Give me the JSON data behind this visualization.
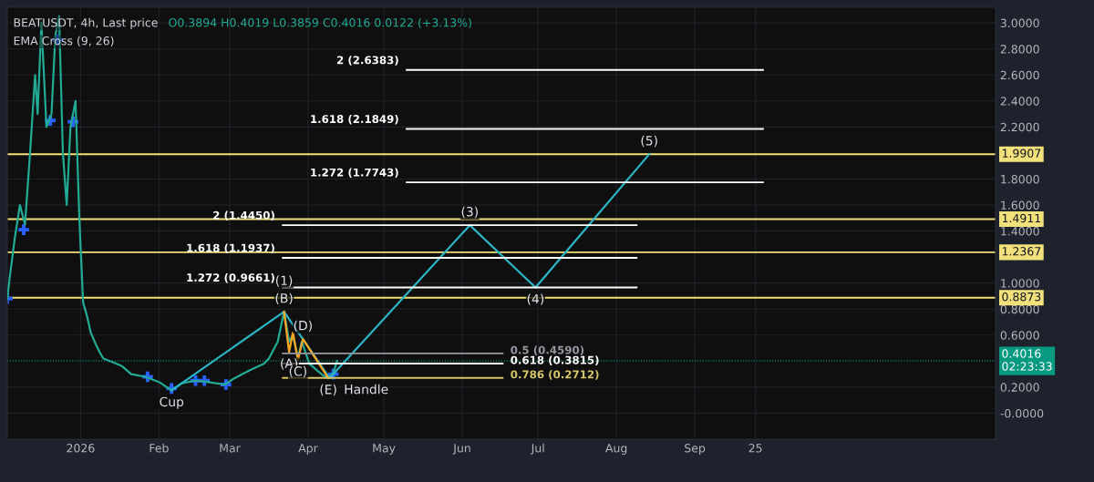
{
  "chart_data": {
    "type": "line",
    "title": "BEATUSDT, 4h, Last price",
    "subtitle": "O0.3894 H0.4019 L0.3859 C0.4016 0.0122 (+3.13%)",
    "xlim": [
      "2025-12-03",
      "2026-12-29"
    ],
    "ylim": [
      -0.2,
      3.12
    ],
    "xticks": [
      {
        "value": "2026-01-01",
        "label": "2026"
      },
      {
        "value": "2026-02-01",
        "label": "Feb"
      },
      {
        "value": "2026-03-01",
        "label": "Mar"
      },
      {
        "value": "2026-04-01",
        "label": "Apr"
      },
      {
        "value": "2026-05-01",
        "label": "May"
      },
      {
        "value": "2026-06-01",
        "label": "Jun"
      },
      {
        "value": "2026-07-01",
        "label": "Jul"
      },
      {
        "value": "2026-08-01",
        "label": "Aug"
      },
      {
        "value": "2026-09-01",
        "label": "Sep"
      },
      {
        "value": "2026-09-25",
        "label": "25"
      }
    ],
    "yticks": [
      {
        "value": 0,
        "label": "-0.0000"
      },
      {
        "value": 0.2,
        "label": "0.2000"
      },
      {
        "value": 0.6,
        "label": "0.6000"
      },
      {
        "value": 0.8,
        "label": "0.8000"
      },
      {
        "value": 1.0,
        "label": "1.0000"
      },
      {
        "value": 1.4,
        "label": "1.4000"
      },
      {
        "value": 1.6,
        "label": "1.6000"
      },
      {
        "value": 1.8,
        "label": "1.8000"
      },
      {
        "value": 2.2,
        "label": "2.2000"
      },
      {
        "value": 2.4,
        "label": "2.4000"
      },
      {
        "value": 2.6,
        "label": "2.6000"
      },
      {
        "value": 2.8,
        "label": "2.8000"
      },
      {
        "value": 3.0,
        "label": "3.0000"
      }
    ],
    "grid": true,
    "series": [
      {
        "type": "line",
        "color": "#22ab94",
        "x": [
          "2025-12-03",
          "2025-12-04",
          "2025-12-06",
          "2025-12-08",
          "2025-12-10",
          "2025-12-12",
          "2025-12-14",
          "2025-12-15",
          "2025-12-16T12:00",
          "2025-12-18T12:00",
          "2025-12-20T12:00",
          "2025-12-22",
          "2025-12-23T12:00",
          "2025-12-25",
          "2025-12-26T12:00",
          "2025-12-28",
          "2025-12-30",
          "2025-12-31T12:00",
          "2026-01-02",
          "2026-01-03T12:00",
          "2026-01-05",
          "2026-01-07",
          "2026-01-08T12:00",
          "2026-01-10",
          "2026-01-14",
          "2026-01-17T12:00",
          "2026-01-21",
          "2026-01-26T12:00",
          "2026-02-01",
          "2026-02-06",
          "2026-02-10",
          "2026-02-15T12:00",
          "2026-02-20",
          "2026-02-27",
          "2026-03-03",
          "2026-03-09",
          "2026-03-14T12:00",
          "2026-03-16T12:00",
          "2026-03-20",
          "2026-03-22T12:00",
          "2026-03-24T12:00",
          "2026-03-26",
          "2026-03-28",
          "2026-03-29T12:00",
          "2026-04-01T12:00",
          "2026-04-04T12:00",
          "2026-04-07",
          "2026-04-09",
          "2026-04-11",
          "2026-04-12T12:00"
        ],
        "values": [
          0.88,
          1.05,
          1.35,
          1.6,
          1.45,
          2.0,
          2.6,
          2.3,
          3.0,
          2.2,
          2.3,
          2.9,
          3.05,
          2.0,
          1.6,
          2.2,
          2.4,
          1.5,
          0.85,
          0.75,
          0.62,
          0.53,
          0.47,
          0.42,
          0.39,
          0.36,
          0.3,
          0.28,
          0.24,
          0.175,
          0.23,
          0.25,
          0.24,
          0.22,
          0.27,
          0.33,
          0.38,
          0.42,
          0.55,
          0.78,
          0.55,
          0.6,
          0.42,
          0.55,
          0.38,
          0.33,
          0.29,
          0.27,
          0.31,
          0.4016
        ]
      },
      {
        "type": "scatter",
        "marker": "cross",
        "color": "#2962ff",
        "x": [
          "2025-12-03",
          "2025-12-09T12:00",
          "2025-12-20",
          "2025-12-23",
          "2025-12-29",
          "2026-01-27T12:00",
          "2026-02-06",
          "2026-02-15T12:00",
          "2026-02-19",
          "2026-02-27T12:00",
          "2026-04-11"
        ],
        "values": [
          0.88,
          1.41,
          2.25,
          2.87,
          2.24,
          0.28,
          0.19,
          0.25,
          0.25,
          0.22,
          0.3
        ]
      },
      {
        "type": "line",
        "color": "#2bb5c5",
        "x": [
          "2026-02-06",
          "2026-03-22T12:00",
          "2026-04-09T12:00",
          "2026-06-04",
          "2026-06-30",
          "2026-08-14"
        ],
        "values": [
          0.175,
          0.78,
          0.27,
          1.445,
          0.966,
          1.9907
        ]
      },
      {
        "type": "line",
        "color": "#f5a623",
        "x": [
          "2026-03-22T12:00",
          "2026-03-24T12:00",
          "2026-03-26",
          "2026-03-28",
          "2026-03-30",
          "2026-04-09"
        ],
        "values": [
          0.78,
          0.47,
          0.62,
          0.41,
          0.57,
          0.27
        ]
      },
      {
        "type": "line",
        "name": "2 (2.6383)",
        "color": "#ffffff",
        "x": [
          "2026-05-10",
          "2026-09-28"
        ],
        "values": [
          2.6383,
          2.6383
        ]
      },
      {
        "type": "line",
        "name": "1.618 (2.1849)",
        "color": "#ffffff",
        "x": [
          "2026-05-10",
          "2026-09-28"
        ],
        "values": [
          2.1849,
          2.1849
        ]
      },
      {
        "type": "line",
        "name": "1.272 (1.7743)",
        "color": "#ffffff",
        "x": [
          "2026-05-10",
          "2026-09-28"
        ],
        "values": [
          1.7743,
          1.7743
        ]
      },
      {
        "type": "line",
        "name": "2 (1.4450)",
        "color": "#ffffff",
        "x": [
          "2026-03-22",
          "2026-08-09"
        ],
        "values": [
          1.445,
          1.445
        ]
      },
      {
        "type": "line",
        "name": "1.618 (1.1937)",
        "color": "#ffffff",
        "x": [
          "2026-03-22",
          "2026-08-09"
        ],
        "values": [
          1.1937,
          1.1937
        ]
      },
      {
        "type": "line",
        "name": "1.272 (0.9661)",
        "color": "#ffffff",
        "x": [
          "2026-03-22",
          "2026-08-09"
        ],
        "values": [
          0.9661,
          0.9661
        ]
      },
      {
        "type": "line",
        "name": "0.5 (0.4590)",
        "color": "#9598a1",
        "x": [
          "2026-03-22",
          "2026-06-17"
        ],
        "values": [
          0.459,
          0.459
        ]
      },
      {
        "type": "line",
        "name": "0.618 (0.3815)",
        "color": "#ffffff",
        "x": [
          "2026-03-22",
          "2026-06-17"
        ],
        "values": [
          0.3815,
          0.3815
        ]
      },
      {
        "type": "line",
        "name": "0.786 (0.2712)",
        "color": "#d6c56a",
        "x": [
          "2026-03-22",
          "2026-06-17"
        ],
        "values": [
          0.2712,
          0.2712
        ]
      }
    ],
    "ref_lines": [
      {
        "axis": "y",
        "value": 1.9907,
        "label": "1.9907",
        "color": "#f2e07a"
      },
      {
        "axis": "y",
        "value": 1.4911,
        "label": "1.4911",
        "color": "#f2e07a"
      },
      {
        "axis": "y",
        "value": 1.2367,
        "label": "1.2367",
        "color": "#f2e07a"
      },
      {
        "axis": "y",
        "value": 0.8873,
        "label": "0.8873",
        "color": "#f2e07a"
      },
      {
        "axis": "y",
        "value": 0.4016,
        "label": "0.4016\n02:23:33",
        "color": "#089981",
        "line_style": "dotted"
      }
    ],
    "annotations": [
      "EMA Cross (9, 26)",
      {
        "text": "(B)",
        "x": "2026-03-22T12:00",
        "y": 0.78
      },
      {
        "text": "(1)",
        "x": "2026-03-22T12:00",
        "y": 0.78
      },
      {
        "text": "(3)",
        "x": "2026-06-04",
        "y": 1.445
      },
      {
        "text": "(4)",
        "x": "2026-06-30",
        "y": 0.966
      },
      {
        "text": "(5)",
        "x": "2026-08-14",
        "y": 1.9907
      },
      {
        "text": "(D)",
        "x": "2026-03-30",
        "y": 0.57
      },
      {
        "text": "(A)",
        "x": "2026-03-24T12:00",
        "y": 0.47
      },
      {
        "text": "(C)",
        "x": "2026-03-28",
        "y": 0.41
      },
      {
        "text": "(E)",
        "x": "2026-04-09",
        "y": 0.27
      },
      {
        "text": "Cup",
        "x": "2026-02-06",
        "y": 0.175
      },
      {
        "text": "Handle",
        "x": "2026-04-24",
        "y": 0.2712
      }
    ]
  }
}
